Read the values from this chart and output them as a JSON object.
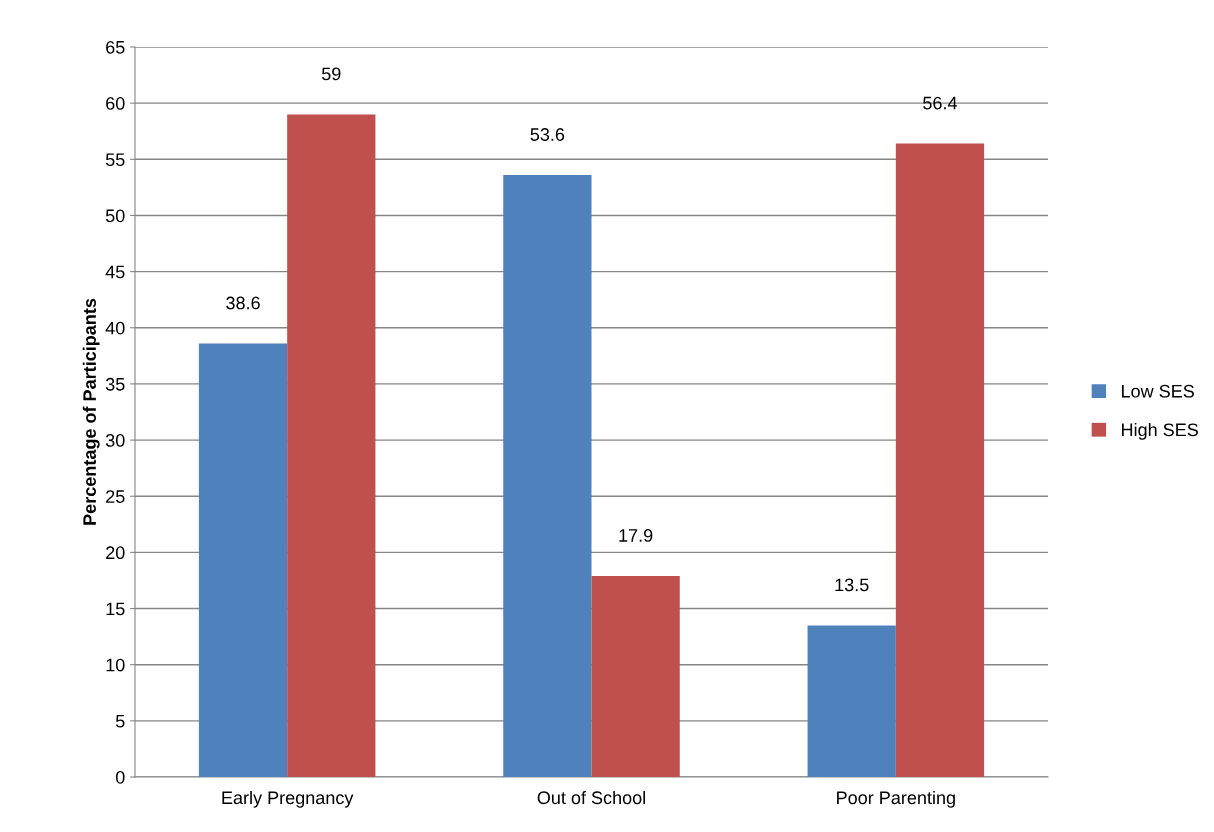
{
  "chart_data": {
    "type": "bar",
    "ylabel": "Percentage of Participants",
    "categories": [
      "Early Pregnancy",
      "Out of School",
      "Poor Parenting"
    ],
    "series": [
      {
        "name": "Low SES",
        "color": "#4f81bd",
        "values": [
          38.6,
          53.6,
          13.5
        ]
      },
      {
        "name": "High SES",
        "color": "#c0504d",
        "values": [
          59,
          17.9,
          56.4
        ]
      }
    ],
    "ylim": [
      0,
      65
    ],
    "yticks": [
      0,
      5,
      10,
      15,
      20,
      25,
      30,
      35,
      40,
      45,
      50,
      55,
      60,
      65
    ],
    "grid": "y",
    "legend": "right",
    "data_labels": true
  }
}
